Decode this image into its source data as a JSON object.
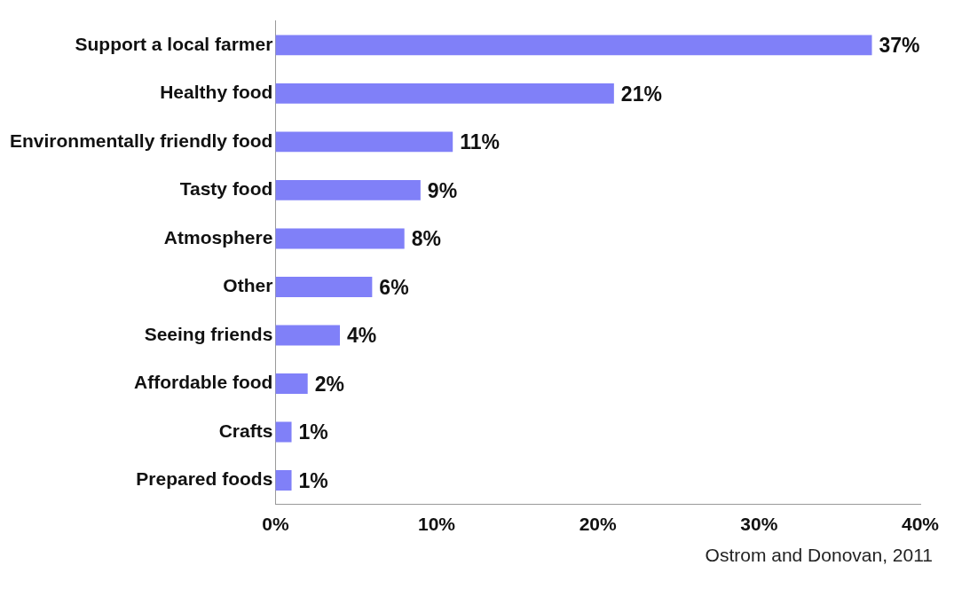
{
  "chart_data": {
    "type": "bar",
    "orientation": "horizontal",
    "categories": [
      "Support a local farmer",
      "Healthy food",
      "Environmentally friendly food",
      "Tasty food",
      "Atmosphere",
      "Other",
      "Seeing friends",
      "Affordable food",
      "Crafts",
      "Prepared foods"
    ],
    "values": [
      37,
      21,
      11,
      9,
      8,
      6,
      4,
      2,
      1,
      1
    ],
    "value_labels": [
      "37%",
      "21%",
      "11%",
      "9%",
      "8%",
      "6%",
      "4%",
      "2%",
      "1%",
      "1%"
    ],
    "color": "#8080f8",
    "xlim": [
      0,
      40
    ],
    "xticks": [
      {
        "value": 0,
        "label": "0%"
      },
      {
        "value": 10,
        "label": "10%"
      },
      {
        "value": 20,
        "label": "20%"
      },
      {
        "value": 30,
        "label": "30%"
      },
      {
        "value": 40,
        "label": "40%"
      }
    ],
    "grid": false,
    "legend": false,
    "annotations": [
      "Ostrom and Donovan, 2011"
    ]
  }
}
